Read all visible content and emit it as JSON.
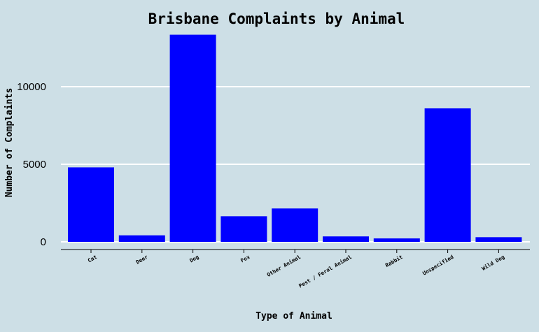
{
  "chart_data": {
    "type": "bar",
    "title": "Brisbane Complaints by Animal",
    "xlabel": "Type of Animal",
    "ylabel": "Number of Complaints",
    "categories": [
      "Cat",
      "Deer",
      "Dog",
      "Fox",
      "Other Animal",
      "Pest / Feral Animal",
      "Rabbit",
      "Unspecified",
      "Wild Dog"
    ],
    "values": [
      4800,
      420,
      13350,
      1650,
      2150,
      350,
      220,
      8600,
      300
    ],
    "ylim": [
      0,
      14000
    ],
    "yticks": [
      0,
      5000,
      10000
    ],
    "ytick_labels": [
      "0",
      "5000",
      "10000"
    ],
    "grid": "horizontal",
    "legend": "none",
    "colors": {
      "bar": "#0000ff",
      "background": "#cddfe6",
      "grid": "#ffffff",
      "axis": "#000000"
    }
  }
}
